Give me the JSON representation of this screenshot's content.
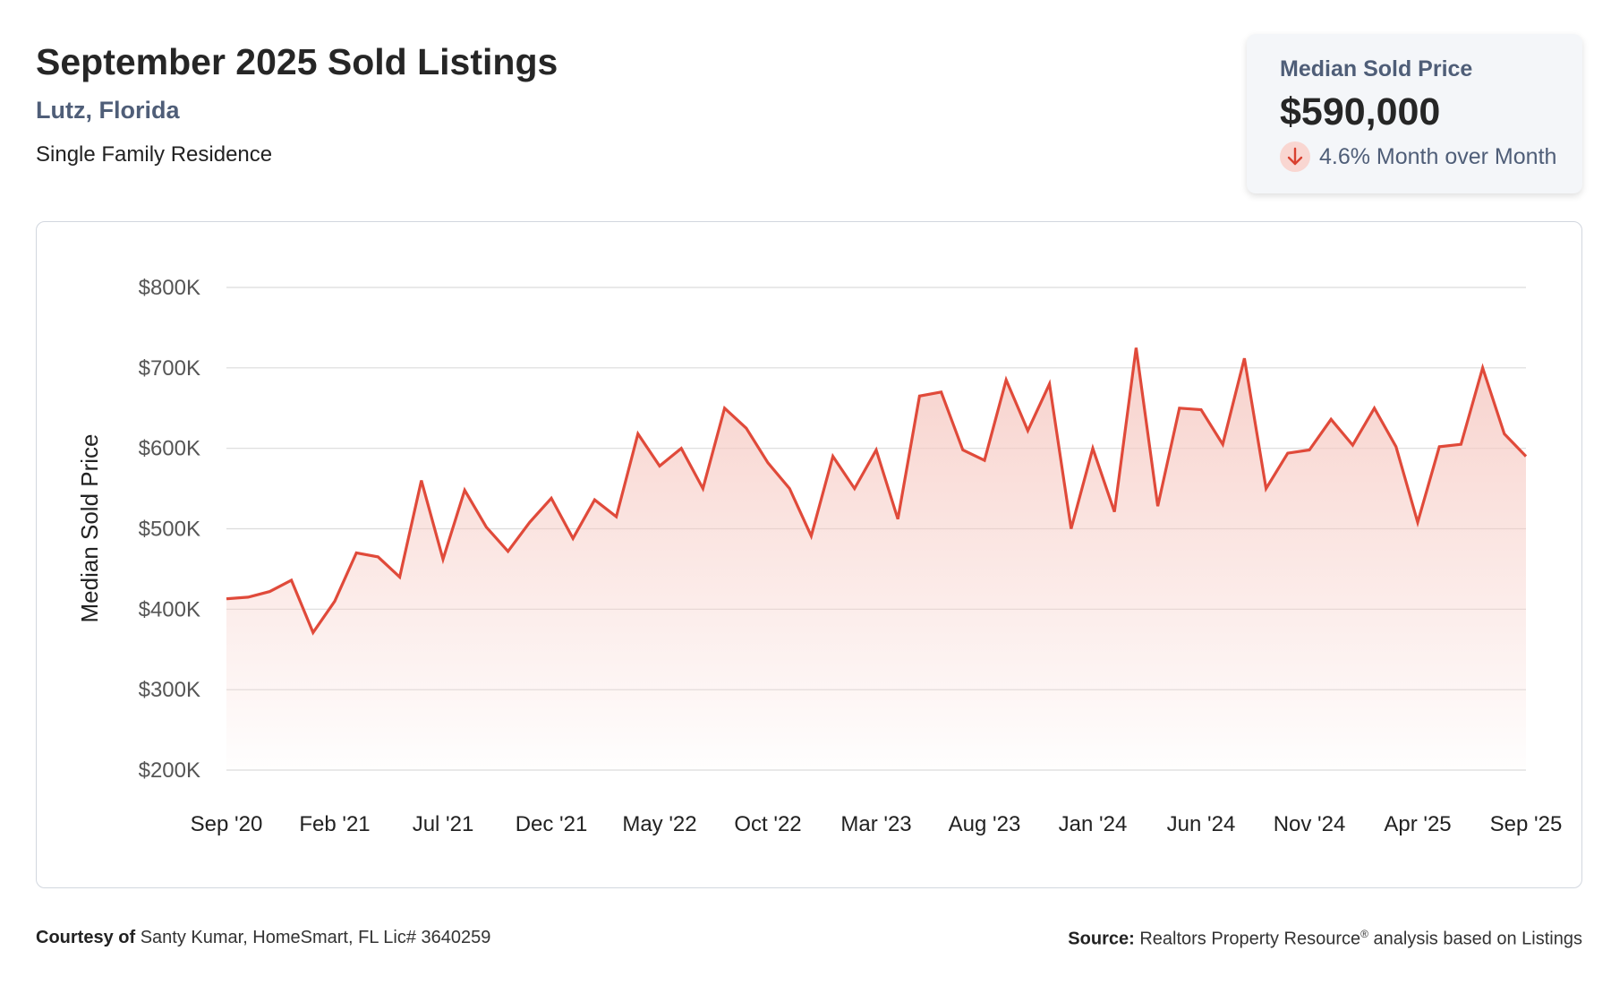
{
  "header": {
    "title": "September 2025 Sold Listings",
    "location": "Lutz, Florida",
    "property_type": "Single Family Residence"
  },
  "summary_card": {
    "label": "Median Sold Price",
    "value": "$590,000",
    "change": "4.6% Month over Month",
    "direction_icon": "arrow-down-icon"
  },
  "colors": {
    "line": "#e04a3a",
    "area_top": "#f6c9c2",
    "grid": "#dcdcdc",
    "label": "#4f5e78"
  },
  "chart_data": {
    "type": "area",
    "ylabel": "Median Sold Price",
    "xlabel": "",
    "ylim": [
      200000,
      800000
    ],
    "y_ticks": [
      200000,
      300000,
      400000,
      500000,
      600000,
      700000,
      800000
    ],
    "y_tick_labels": [
      "$200K",
      "$300K",
      "$400K",
      "$500K",
      "$600K",
      "$700K",
      "$800K"
    ],
    "x_tick_labels": [
      "Sep '20",
      "Feb '21",
      "Jul '21",
      "Dec '21",
      "May '22",
      "Oct '22",
      "Mar '23",
      "Aug '23",
      "Jan '24",
      "Jun '24",
      "Nov '24",
      "Apr '25",
      "Sep '25"
    ],
    "x_tick_every": 5,
    "grid": true,
    "legend": "none",
    "series": [
      {
        "values": [
          413000,
          415000,
          422000,
          436000,
          371000,
          410000,
          470000,
          465000,
          440000,
          560000,
          462000,
          548000,
          502000,
          472000,
          508000,
          538000,
          488000,
          536000,
          515000,
          618000,
          578000,
          600000,
          550000,
          650000,
          625000,
          582000,
          550000,
          491000,
          590000,
          550000,
          598000,
          512000,
          665000,
          670000,
          598000,
          585000,
          685000,
          622000,
          680000,
          500000,
          600000,
          521000,
          725000,
          528000,
          650000,
          648000,
          605000,
          712000,
          550000,
          594000,
          598000,
          636000,
          604000,
          650000,
          602000,
          508000,
          602000,
          605000,
          700000,
          618000,
          590000
        ]
      }
    ]
  },
  "footer": {
    "courtesy_label": "Courtesy of",
    "courtesy_text": "Santy Kumar, HomeSmart, FL Lic# 3640259",
    "source_label": "Source:",
    "source_text_1": "Realtors Property Resource",
    "source_reg": "®",
    "source_text_2": " analysis based on Listings"
  }
}
